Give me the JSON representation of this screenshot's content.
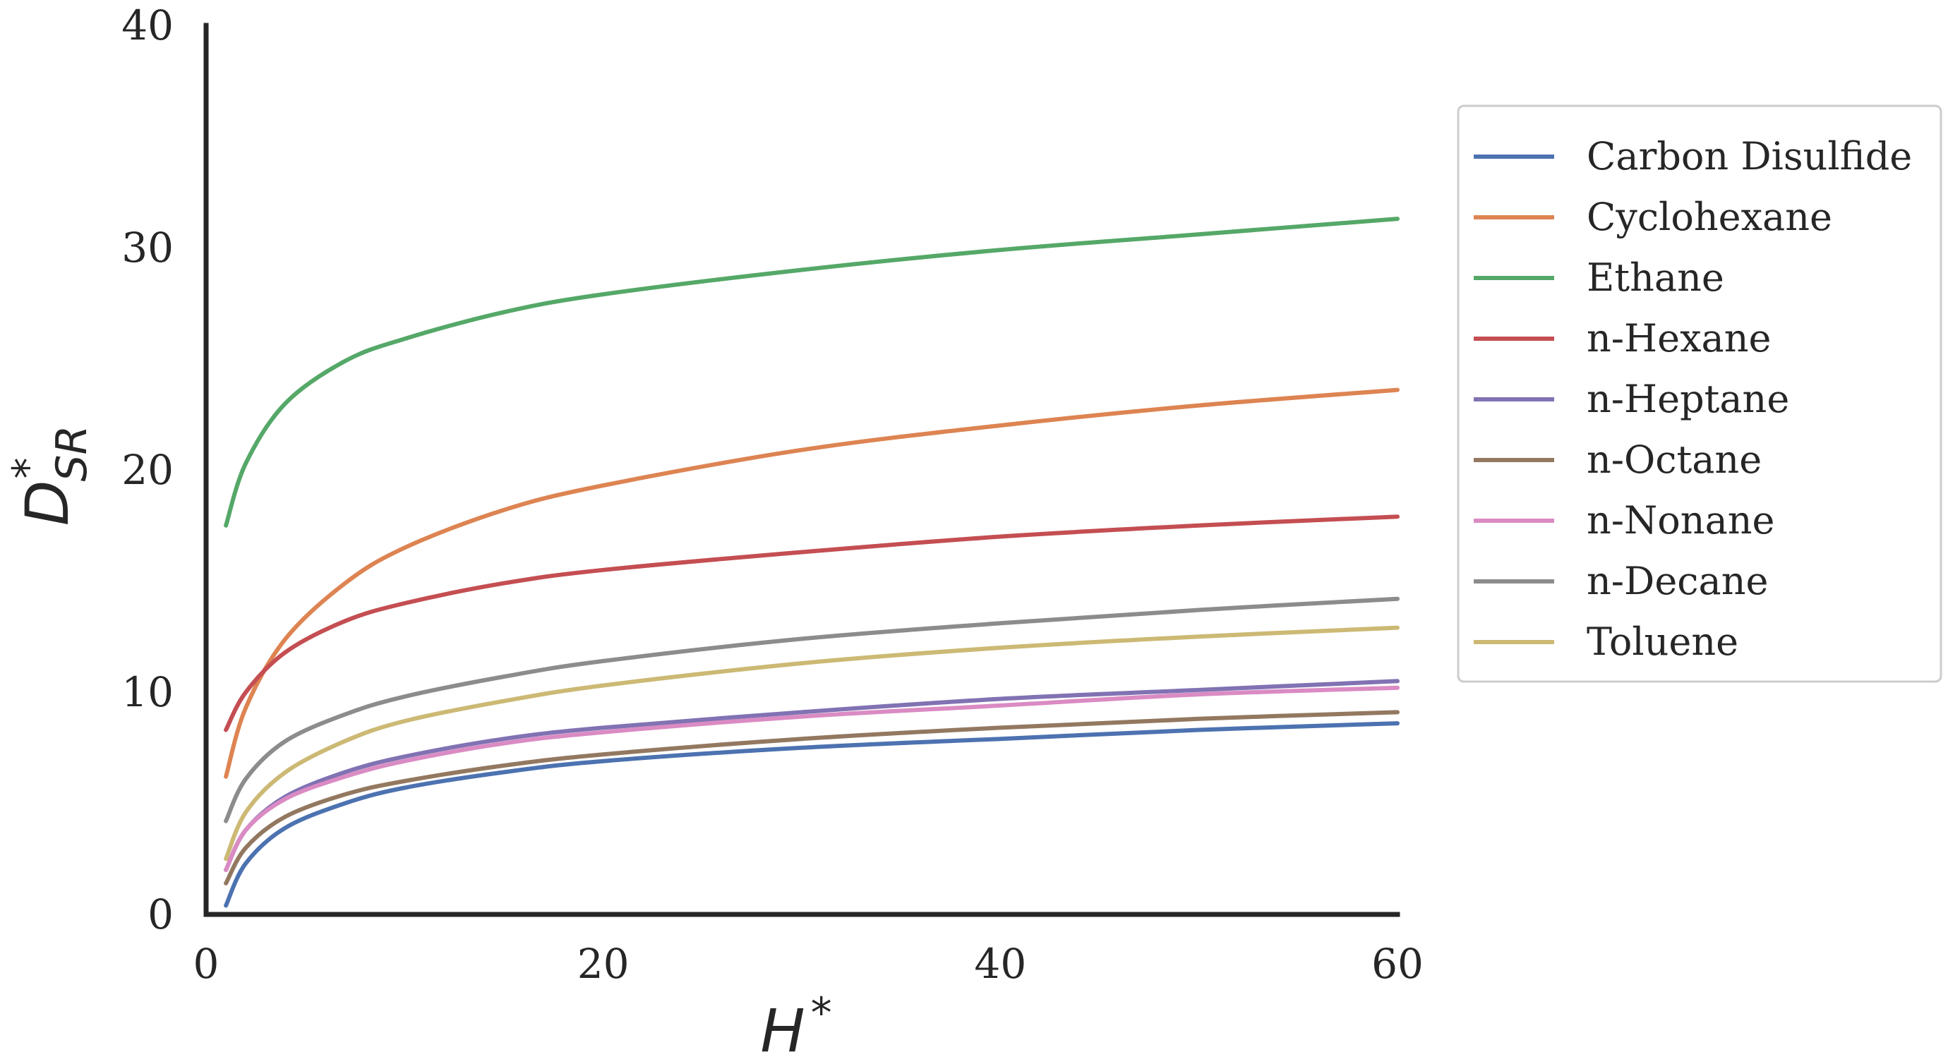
{
  "chart_data": {
    "type": "line",
    "xlabel": {
      "base": "H",
      "sup": "*"
    },
    "ylabel": {
      "base": "D",
      "sup": "*",
      "sub": "SR"
    },
    "xlim": [
      0,
      60
    ],
    "ylim": [
      0,
      40
    ],
    "xticks": [
      0,
      20,
      40,
      60
    ],
    "yticks": [
      0,
      10,
      20,
      30,
      40
    ],
    "xtick_labels": [
      "0",
      "20",
      "40",
      "60"
    ],
    "ytick_labels": [
      "0",
      "10",
      "20",
      "30",
      "40"
    ],
    "grid": false,
    "legend_position": "right",
    "x": [
      1,
      2,
      4,
      7,
      10,
      15,
      20,
      30,
      40,
      50,
      60
    ],
    "series": [
      {
        "name": "Carbon Disulfide",
        "color": "#4c72b0",
        "values": [
          0.4,
          2.3,
          3.9,
          5.0,
          5.7,
          6.4,
          6.9,
          7.5,
          7.9,
          8.3,
          8.6
        ]
      },
      {
        "name": "Cyclohexane",
        "color": "#dd8452",
        "values": [
          6.2,
          9.3,
          12.4,
          14.9,
          16.5,
          18.2,
          19.3,
          20.9,
          22.0,
          22.9,
          23.6
        ]
      },
      {
        "name": "Ethane",
        "color": "#55a868",
        "values": [
          17.5,
          20.3,
          23.0,
          24.9,
          25.9,
          27.1,
          27.9,
          29.0,
          29.9,
          30.6,
          31.3
        ]
      },
      {
        "name": "n-Hexane",
        "color": "#c44e52",
        "values": [
          8.3,
          10.0,
          11.8,
          13.2,
          14.0,
          14.9,
          15.5,
          16.3,
          17.0,
          17.5,
          17.9
        ]
      },
      {
        "name": "n-Heptane",
        "color": "#8172b3",
        "values": [
          2.0,
          3.8,
          5.3,
          6.4,
          7.1,
          7.9,
          8.4,
          9.1,
          9.7,
          10.1,
          10.5
        ]
      },
      {
        "name": "n-Octane",
        "color": "#937860",
        "values": [
          1.4,
          3.0,
          4.4,
          5.4,
          6.0,
          6.7,
          7.2,
          7.9,
          8.4,
          8.8,
          9.1
        ]
      },
      {
        "name": "n-Nonane",
        "color": "#da8bc3",
        "values": [
          2.0,
          3.8,
          5.2,
          6.2,
          6.9,
          7.7,
          8.2,
          8.9,
          9.4,
          9.9,
          10.2
        ]
      },
      {
        "name": "n-Decane",
        "color": "#8c8c8c",
        "values": [
          4.2,
          6.1,
          7.8,
          9.0,
          9.8,
          10.7,
          11.4,
          12.4,
          13.1,
          13.7,
          14.2
        ]
      },
      {
        "name": "Toluene",
        "color": "#ccb974",
        "values": [
          2.5,
          4.6,
          6.4,
          7.8,
          8.7,
          9.6,
          10.3,
          11.3,
          12.0,
          12.5,
          12.9
        ]
      }
    ]
  }
}
